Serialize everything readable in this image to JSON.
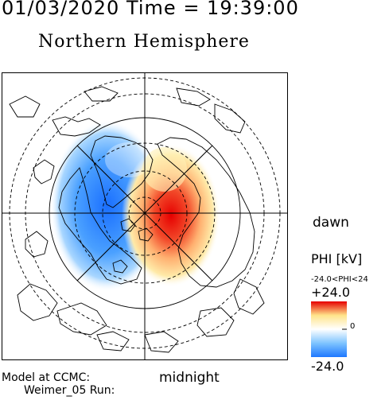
{
  "header": {
    "datetime": "01/03/2020 Time = 19:39:00",
    "hemisphere": "Northern Hemisphere"
  },
  "labels": {
    "dawn": "dawn",
    "midnight": "midnight"
  },
  "colorbar": {
    "title": "PHI [kV]",
    "range_text": "-24.0<PHI<24",
    "max_label": "+24.0",
    "min_label": "-24.0",
    "zero_label": "0",
    "min": -24.0,
    "max": 24.0,
    "colors": [
      "#1e78ff",
      "#7ec4ff",
      "#ffffff",
      "#ffe48a",
      "#e60000"
    ]
  },
  "footer": {
    "line1": "Model at CCMC:",
    "line2": "Weimer_05 Run:"
  },
  "map": {
    "projection": "polar stereographic, north pole centered",
    "grid": true,
    "contours": "electric potential",
    "negative_cell_side": "left",
    "positive_cell_side": "right"
  }
}
